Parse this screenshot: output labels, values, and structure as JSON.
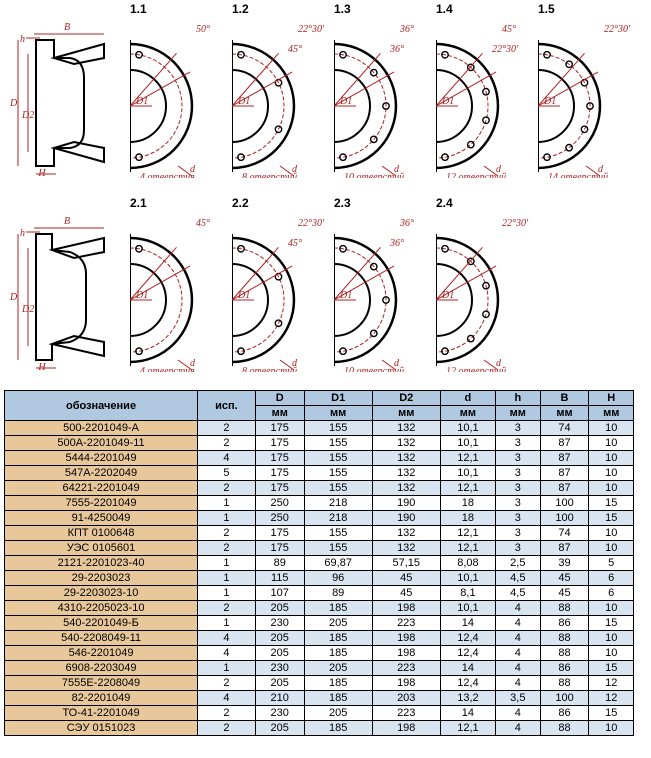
{
  "row1": {
    "profile": {
      "dims": [
        "B",
        "h",
        "D",
        "D2",
        "H"
      ]
    },
    "variants": [
      {
        "label": "1.1",
        "angle1": "50°",
        "angle2": "",
        "holes": "4 отверстия",
        "d": "d"
      },
      {
        "label": "1.2",
        "angle1": "22°30'",
        "angle2": "45°",
        "holes": "8 отверстий",
        "d": "d"
      },
      {
        "label": "1.3",
        "angle1": "36°",
        "angle2": "36°",
        "holes": "10 отверстий",
        "d": "d"
      },
      {
        "label": "1.4",
        "angle1": "45°",
        "angle2": "22°30'",
        "holes": "12 отверстий",
        "d": "d"
      },
      {
        "label": "1.5",
        "angle1": "22°30'",
        "angle2": "",
        "holes": "14 отверстий",
        "d": "d"
      }
    ]
  },
  "row2": {
    "profile": {
      "dims": [
        "B",
        "h",
        "D",
        "D2",
        "H"
      ]
    },
    "variants": [
      {
        "label": "2.1",
        "angle1": "45°",
        "angle2": "",
        "holes": "4 отверстия",
        "d": "d"
      },
      {
        "label": "2.2",
        "angle1": "22°30'",
        "angle2": "45°",
        "holes": "8 отверстий",
        "d": "d"
      },
      {
        "label": "2.3",
        "angle1": "36°",
        "angle2": "36°",
        "holes": "10 отверстий",
        "d": "d"
      },
      {
        "label": "2.4",
        "angle1": "22°30'",
        "angle2": "",
        "holes": "12 отверстий",
        "d": "d"
      }
    ]
  },
  "table": {
    "headers": {
      "part": "обозначение",
      "exec": "исп.",
      "cols": [
        "D",
        "D1",
        "D2",
        "d",
        "h",
        "B",
        "H"
      ],
      "unit": "мм"
    },
    "header_bg": "#b0c8e0",
    "alt_bg": "#d8e4f0",
    "pn_bg": "#e8c89a",
    "rows": [
      [
        "500-2201049-А",
        "2",
        "175",
        "155",
        "132",
        "10,1",
        "3",
        "74",
        "10"
      ],
      [
        "500А-2201049-11",
        "2",
        "175",
        "155",
        "132",
        "10,1",
        "3",
        "87",
        "10"
      ],
      [
        "5444-2201049",
        "4",
        "175",
        "155",
        "132",
        "12,1",
        "3",
        "87",
        "10"
      ],
      [
        "547А-2202049",
        "5",
        "175",
        "155",
        "132",
        "10,1",
        "3",
        "87",
        "10"
      ],
      [
        "64221-2201049",
        "2",
        "175",
        "155",
        "132",
        "12,1",
        "3",
        "87",
        "10"
      ],
      [
        "7555-2201049",
        "1",
        "250",
        "218",
        "190",
        "18",
        "3",
        "100",
        "15"
      ],
      [
        "91-4250049",
        "1",
        "250",
        "218",
        "190",
        "18",
        "3",
        "100",
        "15"
      ],
      [
        "КПТ 0100648",
        "2",
        "175",
        "155",
        "132",
        "12,1",
        "3",
        "74",
        "10"
      ],
      [
        "УЭС 0105601",
        "2",
        "175",
        "155",
        "132",
        "12,1",
        "3",
        "87",
        "10"
      ],
      [
        "2121-2201023-40",
        "1",
        "89",
        "69,87",
        "57,15",
        "8,08",
        "2,5",
        "39",
        "5"
      ],
      [
        "29-2203023",
        "1",
        "115",
        "96",
        "45",
        "10,1",
        "4,5",
        "45",
        "6"
      ],
      [
        "29-2203023-10",
        "1",
        "107",
        "89",
        "45",
        "8,1",
        "4,5",
        "45",
        "6"
      ],
      [
        "4310-2205023-10",
        "2",
        "205",
        "185",
        "198",
        "10,1",
        "4",
        "88",
        "10"
      ],
      [
        "540-2201049-Б",
        "1",
        "230",
        "205",
        "223",
        "14",
        "4",
        "86",
        "15"
      ],
      [
        "540-2208049-11",
        "4",
        "205",
        "185",
        "198",
        "12,4",
        "4",
        "88",
        "10"
      ],
      [
        "546-2201049",
        "4",
        "205",
        "185",
        "198",
        "12,4",
        "4",
        "88",
        "10"
      ],
      [
        "6908-2203049",
        "1",
        "230",
        "205",
        "223",
        "14",
        "4",
        "86",
        "15"
      ],
      [
        "7555Е-2208049",
        "2",
        "205",
        "185",
        "198",
        "12,4",
        "4",
        "88",
        "12"
      ],
      [
        "82-2201049",
        "4",
        "210",
        "185",
        "203",
        "13,2",
        "3,5",
        "100",
        "12"
      ],
      [
        "ТО-41-2201049",
        "2",
        "230",
        "205",
        "223",
        "14",
        "4",
        "86",
        "15"
      ],
      [
        "СЭУ 0151023",
        "2",
        "205",
        "185",
        "198",
        "12,1",
        "4",
        "88",
        "10"
      ]
    ]
  },
  "style": {
    "dim_color": "#b02020",
    "line_color": "#000"
  }
}
